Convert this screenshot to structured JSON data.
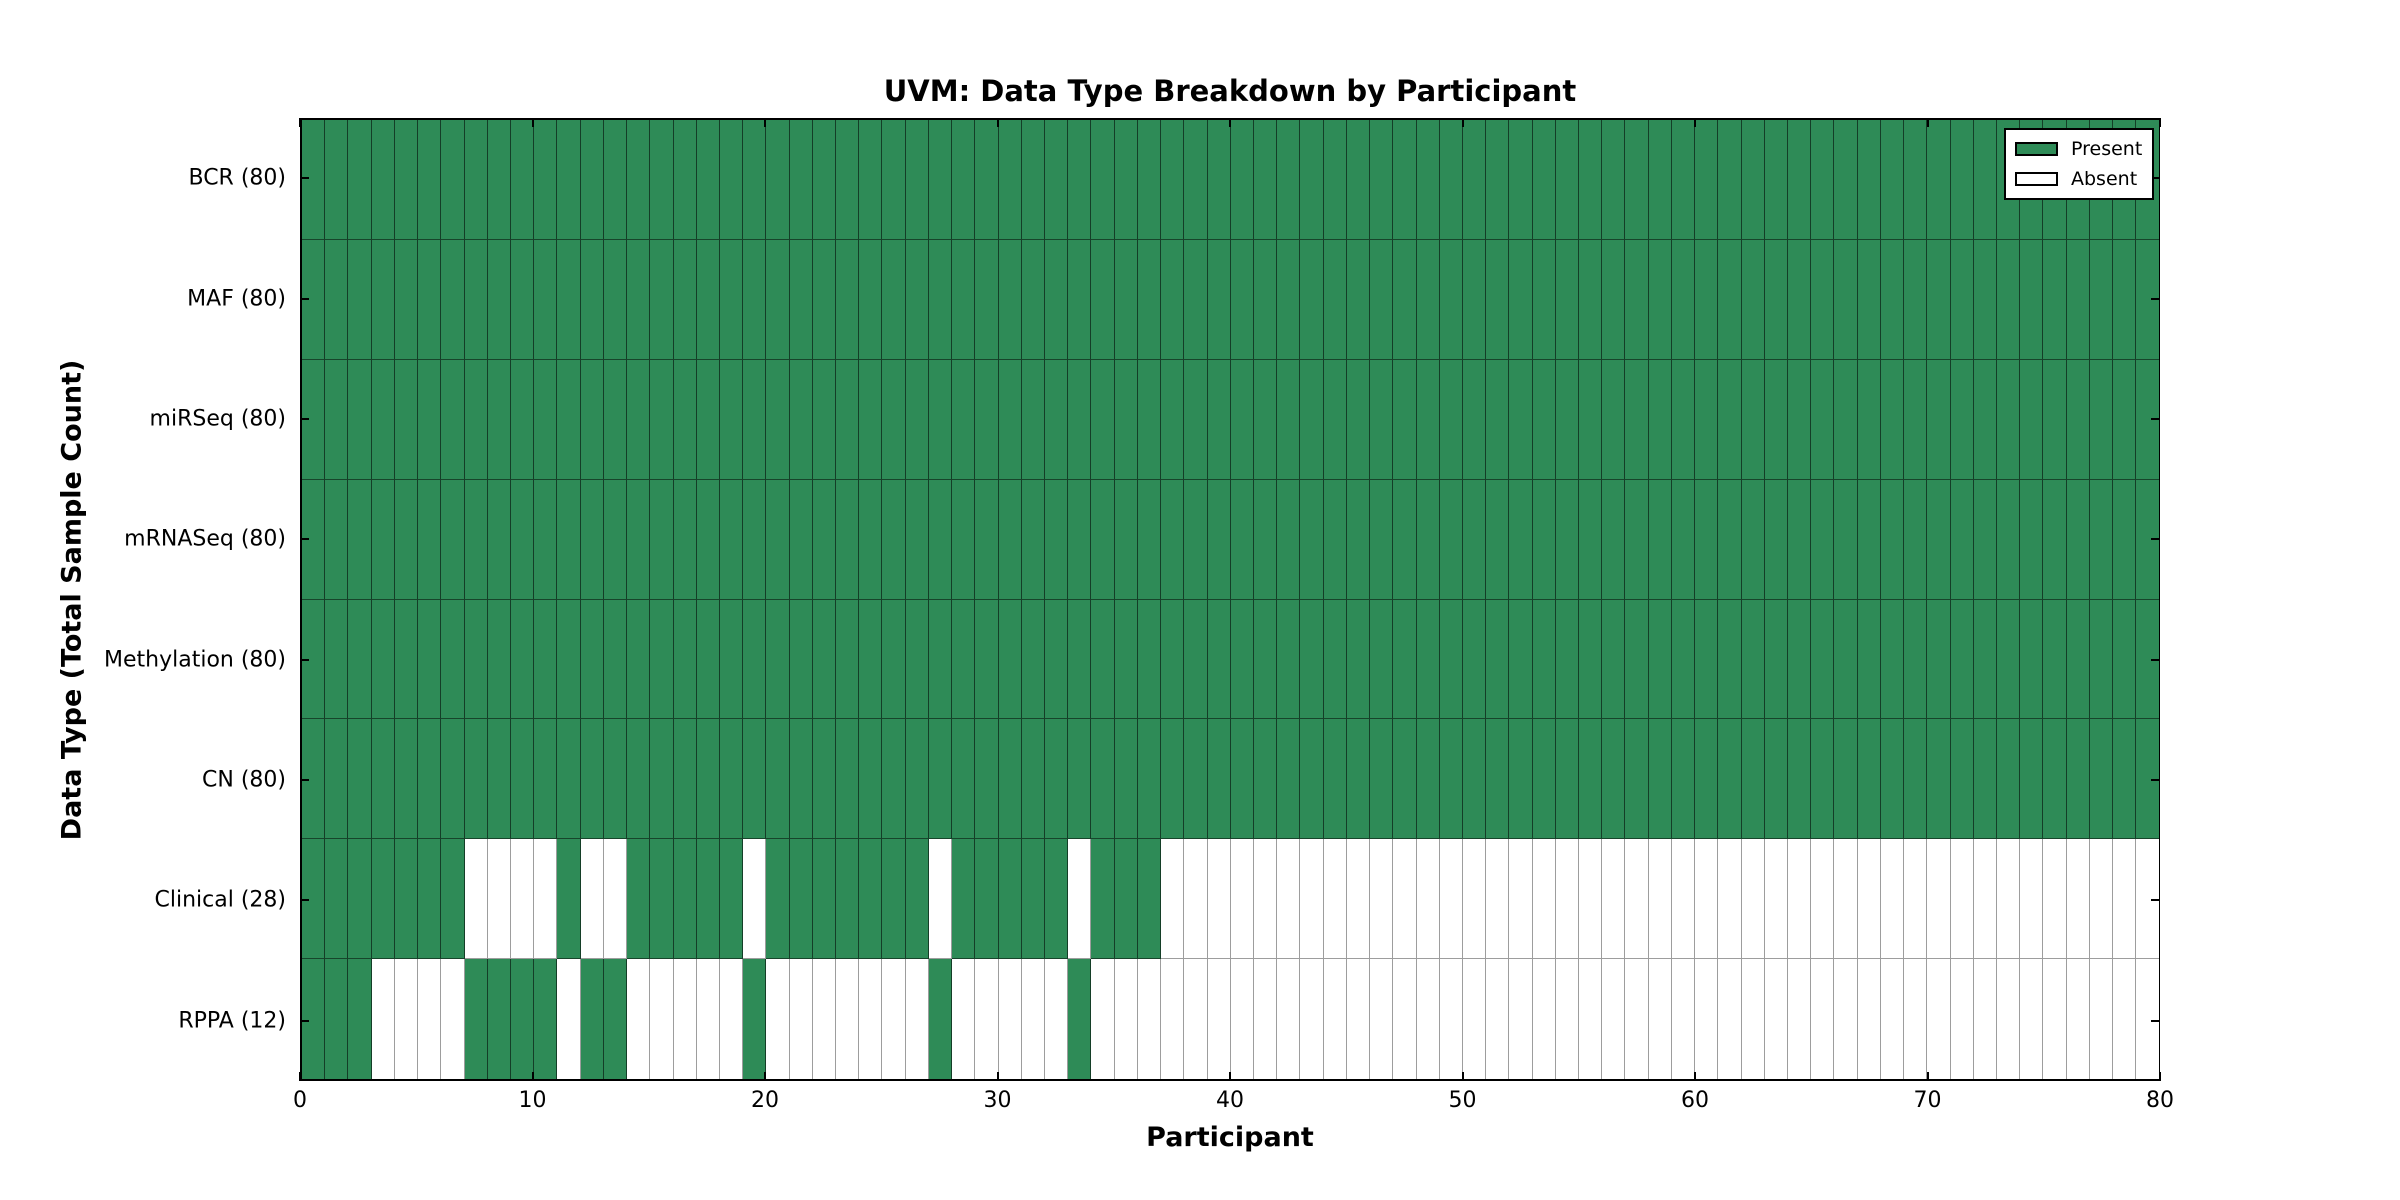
{
  "chart_data": {
    "type": "heatmap",
    "title": "UVM: Data Type Breakdown by Participant",
    "xlabel": "Participant",
    "ylabel": "Data Type (Total Sample Count)",
    "x_range": [
      0,
      80
    ],
    "x_ticks": [
      0,
      10,
      20,
      30,
      40,
      50,
      60,
      70,
      80
    ],
    "participants": 80,
    "grid": "cell-borders",
    "colors": {
      "present": "#2E8B57",
      "absent": "#FFFFFF",
      "frame": "#000000"
    },
    "legend": {
      "position": "top-right",
      "items": [
        {
          "label": "Present",
          "color": "#2E8B57"
        },
        {
          "label": "Absent",
          "color": "#FFFFFF"
        }
      ]
    },
    "rows": [
      {
        "label": "BCR (80)",
        "name": "BCR",
        "total": 80,
        "present_ranges": [
          [
            0,
            79
          ]
        ]
      },
      {
        "label": "MAF (80)",
        "name": "MAF",
        "total": 80,
        "present_ranges": [
          [
            0,
            79
          ]
        ]
      },
      {
        "label": "miRSeq (80)",
        "name": "miRSeq",
        "total": 80,
        "present_ranges": [
          [
            0,
            79
          ]
        ]
      },
      {
        "label": "mRNASeq (80)",
        "name": "mRNASeq",
        "total": 80,
        "present_ranges": [
          [
            0,
            79
          ]
        ]
      },
      {
        "label": "Methylation (80)",
        "name": "Methylation",
        "total": 80,
        "present_ranges": [
          [
            0,
            79
          ]
        ]
      },
      {
        "label": "CN (80)",
        "name": "CN",
        "total": 80,
        "present_ranges": [
          [
            0,
            79
          ]
        ]
      },
      {
        "label": "Clinical (28)",
        "name": "Clinical",
        "total": 28,
        "present_ranges": [
          [
            0,
            6
          ],
          [
            11,
            11
          ],
          [
            14,
            18
          ],
          [
            20,
            26
          ],
          [
            28,
            32
          ],
          [
            34,
            36
          ]
        ]
      },
      {
        "label": "RPPA (12)",
        "name": "RPPA",
        "total": 12,
        "present_ranges": [
          [
            0,
            2
          ],
          [
            7,
            10
          ],
          [
            12,
            13
          ],
          [
            19,
            19
          ],
          [
            27,
            27
          ],
          [
            33,
            33
          ]
        ]
      }
    ]
  }
}
